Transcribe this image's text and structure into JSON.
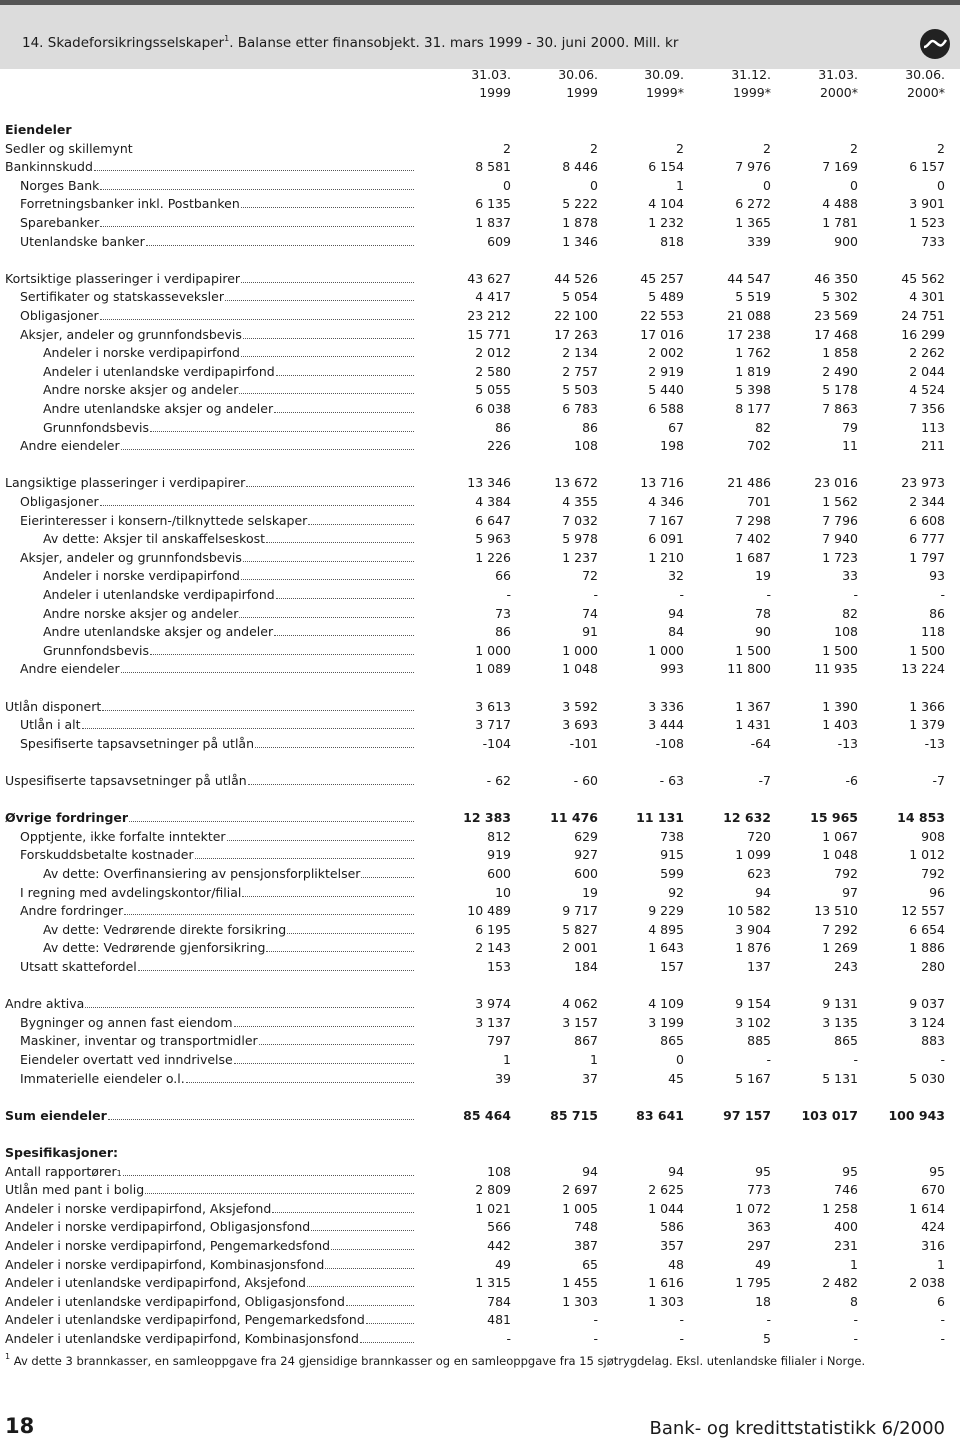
{
  "header": {
    "title_before": "14.  Skadeforsikringsselskaper",
    "sup": "1",
    "title_after": ". Balanse etter finansobjekt.  31. mars 1999 - 30. juni 2000.  Mill. kr"
  },
  "columns": [
    {
      "line1": "31.03.",
      "line2": "1999"
    },
    {
      "line1": "30.06.",
      "line2": "1999"
    },
    {
      "line1": "30.09.",
      "line2": "1999*"
    },
    {
      "line1": "31.12.",
      "line2": "1999*"
    },
    {
      "line1": "31.03.",
      "line2": "2000*"
    },
    {
      "line1": "30.06.",
      "line2": "2000*"
    }
  ],
  "sections": [
    [
      {
        "label": "Eiendeler",
        "level": 0,
        "bold": true,
        "dots": false
      },
      {
        "label": "Sedler og skillemynt",
        "level": 0,
        "dots": false,
        "values": [
          "2",
          "2",
          "2",
          "2",
          "2",
          "2"
        ]
      },
      {
        "label": "Bankinnskudd",
        "level": 0,
        "dots": true,
        "values": [
          "8 581",
          "8 446",
          "6 154",
          "7 976",
          "7 169",
          "6 157"
        ]
      },
      {
        "label": "Norges Bank",
        "level": 1,
        "dots": true,
        "values": [
          "0",
          "0",
          "1",
          "0",
          "0",
          "0"
        ]
      },
      {
        "label": "Forretningsbanker inkl. Postbanken",
        "level": 1,
        "dots": true,
        "values": [
          "6 135",
          "5 222",
          "4 104",
          "6 272",
          "4 488",
          "3 901"
        ]
      },
      {
        "label": "Sparebanker",
        "level": 1,
        "dots": true,
        "values": [
          "1 837",
          "1 878",
          "1 232",
          "1 365",
          "1 781",
          "1 523"
        ]
      },
      {
        "label": "Utenlandske banker",
        "level": 1,
        "dots": true,
        "values": [
          "609",
          "1 346",
          "818",
          "339",
          "900",
          "733"
        ]
      }
    ],
    [
      {
        "label": "Kortsiktige plasseringer i verdipapirer",
        "level": 0,
        "dots": true,
        "values": [
          "43 627",
          "44 526",
          "45 257",
          "44 547",
          "46 350",
          "45 562"
        ]
      },
      {
        "label": "Sertifikater og statskasseveksler",
        "level": 1,
        "dots": true,
        "values": [
          "4 417",
          "5 054",
          "5 489",
          "5 519",
          "5 302",
          "4 301"
        ]
      },
      {
        "label": "Obligasjoner",
        "level": 1,
        "dots": true,
        "values": [
          "23 212",
          "22 100",
          "22 553",
          "21 088",
          "23 569",
          "24 751"
        ]
      },
      {
        "label": "Aksjer, andeler og grunnfondsbevis",
        "level": 1,
        "dots": true,
        "values": [
          "15 771",
          "17 263",
          "17 016",
          "17 238",
          "17 468",
          "16 299"
        ]
      },
      {
        "label": "Andeler i norske verdipapirfond",
        "level": 2,
        "dots": true,
        "values": [
          "2 012",
          "2 134",
          "2 002",
          "1 762",
          "1 858",
          "2 262"
        ]
      },
      {
        "label": "Andeler i utenlandske verdipapirfond",
        "level": 2,
        "dots": true,
        "values": [
          "2 580",
          "2 757",
          "2 919",
          "1 819",
          "2 490",
          "2 044"
        ]
      },
      {
        "label": "Andre norske aksjer og andeler",
        "level": 2,
        "dots": true,
        "values": [
          "5 055",
          "5 503",
          "5 440",
          "5 398",
          "5 178",
          "4 524"
        ]
      },
      {
        "label": "Andre utenlandske aksjer og andeler",
        "level": 2,
        "dots": true,
        "values": [
          "6 038",
          "6 783",
          "6 588",
          "8 177",
          "7 863",
          "7 356"
        ]
      },
      {
        "label": "Grunnfondsbevis",
        "level": 2,
        "dots": true,
        "values": [
          "86",
          "86",
          "67",
          "82",
          "79",
          "113"
        ]
      },
      {
        "label": "Andre eiendeler",
        "level": 1,
        "dots": true,
        "values": [
          "226",
          "108",
          "198",
          "702",
          "11",
          "211"
        ]
      }
    ],
    [
      {
        "label": "Langsiktige plasseringer i verdipapirer",
        "level": 0,
        "dots": true,
        "values": [
          "13 346",
          "13 672",
          "13 716",
          "21 486",
          "23 016",
          "23 973"
        ]
      },
      {
        "label": "Obligasjoner",
        "level": 1,
        "dots": true,
        "values": [
          "4 384",
          "4 355",
          "4 346",
          "701",
          "1 562",
          "2 344"
        ]
      },
      {
        "label": "Eierinteresser i konsern-/tilknyttede selskaper",
        "level": 1,
        "dots": true,
        "values": [
          "6 647",
          "7 032",
          "7 167",
          "7 298",
          "7 796",
          "6 608"
        ]
      },
      {
        "label": "Av dette: Aksjer til anskaffelseskost",
        "level": 2,
        "dots": true,
        "values": [
          "5 963",
          "5 978",
          "6 091",
          "7 402",
          "7 940",
          "6 777"
        ]
      },
      {
        "label": "Aksjer, andeler og grunnfondsbevis",
        "level": 1,
        "dots": true,
        "values": [
          "1 226",
          "1 237",
          "1 210",
          "1 687",
          "1 723",
          "1 797"
        ]
      },
      {
        "label": "Andeler i norske verdipapirfond",
        "level": 2,
        "dots": true,
        "values": [
          "66",
          "72",
          "32",
          "19",
          "33",
          "93"
        ]
      },
      {
        "label": "Andeler i utenlandske verdipapirfond",
        "level": 2,
        "dots": true,
        "values": [
          "-",
          "-",
          "-",
          "-",
          "-",
          "-"
        ]
      },
      {
        "label": "Andre norske aksjer og andeler",
        "level": 2,
        "dots": true,
        "values": [
          "73",
          "74",
          "94",
          "78",
          "82",
          "86"
        ]
      },
      {
        "label": "Andre utenlandske aksjer og andeler",
        "level": 2,
        "dots": true,
        "values": [
          "86",
          "91",
          "84",
          "90",
          "108",
          "118"
        ]
      },
      {
        "label": "Grunnfondsbevis",
        "level": 2,
        "dots": true,
        "values": [
          "1 000",
          "1 000",
          "1 000",
          "1 500",
          "1 500",
          "1 500"
        ]
      },
      {
        "label": "Andre eiendeler",
        "level": 1,
        "dots": true,
        "values": [
          "1 089",
          "1 048",
          "993",
          "11 800",
          "11 935",
          "13 224"
        ]
      }
    ],
    [
      {
        "label": "Utlån disponert",
        "level": 0,
        "dots": true,
        "values": [
          "3 613",
          "3 592",
          "3 336",
          "1 367",
          "1 390",
          "1 366"
        ]
      },
      {
        "label": "Utlån i alt",
        "level": 1,
        "dots": true,
        "values": [
          "3 717",
          "3 693",
          "3 444",
          "1 431",
          "1 403",
          "1 379"
        ]
      },
      {
        "label": "Spesifiserte tapsavsetninger på utlån",
        "level": 1,
        "dots": true,
        "values": [
          "-104",
          "-101",
          "-108",
          "-64",
          "-13",
          "-13"
        ]
      }
    ],
    [
      {
        "label": "Uspesifiserte tapsavsetninger på utlån",
        "level": 0,
        "dots": true,
        "values": [
          "- 62",
          "- 60",
          "- 63",
          "-7",
          "-6",
          "-7"
        ]
      }
    ],
    [
      {
        "label": "Øvrige fordringer",
        "level": 0,
        "bold": true,
        "dots": true,
        "values": [
          "12 383",
          "11 476",
          "11 131",
          "12 632",
          "15 965",
          "14 853"
        ]
      },
      {
        "label": "Opptjente, ikke forfalte inntekter",
        "level": 1,
        "dots": true,
        "values": [
          "812",
          "629",
          "738",
          "720",
          "1 067",
          "908"
        ]
      },
      {
        "label": "Forskuddsbetalte kostnader",
        "level": 1,
        "dots": true,
        "values": [
          "919",
          "927",
          "915",
          "1 099",
          "1 048",
          "1 012"
        ]
      },
      {
        "label": "Av dette: Overfinansiering av pensjonsforpliktelser",
        "level": 2,
        "dots": true,
        "values": [
          "600",
          "600",
          "599",
          "623",
          "792",
          "792"
        ]
      },
      {
        "label": "I regning med avdelingskontor/filial",
        "level": 1,
        "dots": true,
        "values": [
          "10",
          "19",
          "92",
          "94",
          "97",
          "96"
        ]
      },
      {
        "label": "Andre fordringer",
        "level": 1,
        "dots": true,
        "values": [
          "10 489",
          "9 717",
          "9 229",
          "10 582",
          "13 510",
          "12 557"
        ]
      },
      {
        "label": "Av dette: Vedrørende direkte forsikring",
        "level": 2,
        "dots": true,
        "values": [
          "6 195",
          "5 827",
          "4 895",
          "3 904",
          "7 292",
          "6 654"
        ]
      },
      {
        "label": "Av dette: Vedrørende gjenforsikring",
        "level": 2,
        "dots": true,
        "values": [
          "2 143",
          "2 001",
          "1 643",
          "1 876",
          "1 269",
          "1 886"
        ]
      },
      {
        "label": "Utsatt skattefordel",
        "level": 1,
        "dots": true,
        "values": [
          "153",
          "184",
          "157",
          "137",
          "243",
          "280"
        ]
      }
    ],
    [
      {
        "label": "Andre aktiva",
        "level": 0,
        "dots": true,
        "values": [
          "3 974",
          "4 062",
          "4 109",
          "9 154",
          "9 131",
          "9 037"
        ]
      },
      {
        "label": "Bygninger og annen fast eiendom",
        "level": 1,
        "dots": true,
        "values": [
          "3 137",
          "3 157",
          "3 199",
          "3 102",
          "3 135",
          "3 124"
        ]
      },
      {
        "label": "Maskiner, inventar og transportmidler",
        "level": 1,
        "dots": true,
        "values": [
          "797",
          "867",
          "865",
          "885",
          "865",
          "883"
        ]
      },
      {
        "label": "Eiendeler overtatt ved inndrivelse",
        "level": 1,
        "dots": true,
        "values": [
          "1",
          "1",
          "0",
          "-",
          "-",
          "-"
        ]
      },
      {
        "label": "Immaterielle eiendeler o.l.",
        "level": 1,
        "dots": true,
        "values": [
          "39",
          "37",
          "45",
          "5 167",
          "5 131",
          "5 030"
        ]
      }
    ],
    [
      {
        "label": "Sum eiendeler",
        "level": 0,
        "bold": true,
        "dots": true,
        "values": [
          "85 464",
          "85 715",
          "83 641",
          "97 157",
          "103 017",
          "100 943"
        ]
      }
    ],
    [
      {
        "label": "Spesifikasjoner:",
        "level": 0,
        "bold": true,
        "dots": false
      },
      {
        "label": "Antall rapportører",
        "sup": "1",
        "level": 0,
        "dots": true,
        "values": [
          "108",
          "94",
          "94",
          "95",
          "95",
          "95"
        ]
      },
      {
        "label": "Utlån med pant i bolig",
        "level": 0,
        "dots": true,
        "values": [
          "2 809",
          "2 697",
          "2 625",
          "773",
          "746",
          "670"
        ]
      },
      {
        "label": "Andeler i norske verdipapirfond, Aksjefond",
        "level": 0,
        "dots": true,
        "values": [
          "1 021",
          "1 005",
          "1 044",
          "1 072",
          "1 258",
          "1 614"
        ]
      },
      {
        "label": "Andeler i norske verdipapirfond, Obligasjonsfond",
        "level": 0,
        "dots": true,
        "values": [
          "566",
          "748",
          "586",
          "363",
          "400",
          "424"
        ]
      },
      {
        "label": "Andeler i norske verdipapirfond, Pengemarkedsfond",
        "level": 0,
        "dots": true,
        "values": [
          "442",
          "387",
          "357",
          "297",
          "231",
          "316"
        ]
      },
      {
        "label": "Andeler i norske verdipapirfond, Kombinasjonsfond",
        "level": 0,
        "dots": true,
        "values": [
          "49",
          "65",
          "48",
          "49",
          "1",
          "1"
        ]
      },
      {
        "label": "Andeler i utenlandske verdipapirfond, Aksjefond",
        "level": 0,
        "dots": true,
        "values": [
          "1 315",
          "1 455",
          "1 616",
          "1 795",
          "2 482",
          "2 038"
        ]
      },
      {
        "label": "Andeler i utenlandske verdipapirfond, Obligasjonsfond",
        "level": 0,
        "dots": true,
        "values": [
          "784",
          "1 303",
          "1 303",
          "18",
          "8",
          "6"
        ]
      },
      {
        "label": "Andeler i utenlandske verdipapirfond, Pengemarkedsfond",
        "level": 0,
        "dots": true,
        "values": [
          "481",
          "-",
          "-",
          "-",
          "-",
          "-"
        ]
      },
      {
        "label": "Andeler i utenlandske verdipapirfond, Kombinasjonsfond",
        "level": 0,
        "dots": true,
        "values": [
          "-",
          "-",
          "-",
          "5",
          "-",
          "-"
        ]
      }
    ]
  ],
  "footnote": {
    "sup": "1",
    "text": " Av dette 3 brannkasser, en samleoppgave fra 24 gjensidige brannkasser og en samleoppgave fra 15 sjøtrygdelag. Eksl. utenlandske filialer i Norge."
  },
  "footer": {
    "page": "18",
    "publication": "Bank- og kredittstatistikk 6/2000"
  }
}
